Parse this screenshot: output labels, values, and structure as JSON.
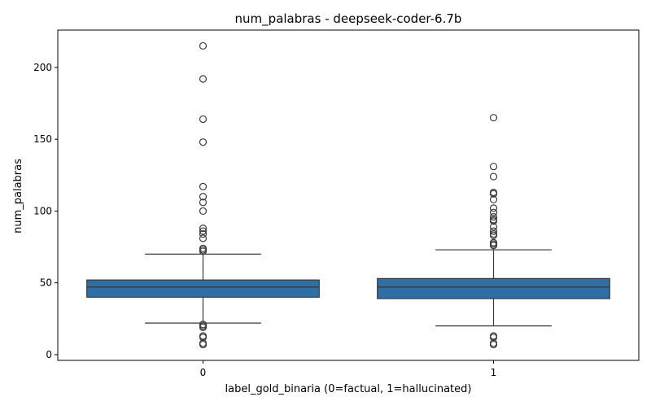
{
  "chart_data": {
    "type": "box",
    "title": "num_palabras - deepseek-coder-6.7b",
    "xlabel": "label_gold_binaria (0=factual, 1=hallucinated)",
    "ylabel": "num_palabras",
    "categories": [
      "0",
      "1"
    ],
    "ylim": [
      -4,
      226
    ],
    "yticks": [
      0,
      50,
      100,
      150,
      200
    ],
    "grid": false,
    "colors": {
      "box": "#2e6fa8",
      "line": "#3a3a3a"
    },
    "boxes": [
      {
        "category": "0",
        "whisker_low": 22,
        "q1": 40,
        "median": 47,
        "q3": 52,
        "whisker_high": 70,
        "outliers": [
          215,
          192,
          164,
          148,
          117,
          110,
          106,
          100,
          88,
          86,
          84,
          81,
          74,
          73,
          72,
          21,
          20,
          19,
          13,
          12,
          8,
          7
        ]
      },
      {
        "category": "1",
        "whisker_low": 20,
        "q1": 39,
        "median": 47,
        "q3": 53,
        "whisker_high": 73,
        "outliers": [
          165,
          131,
          124,
          113,
          112,
          108,
          102,
          99,
          96,
          94,
          93,
          89,
          86,
          84,
          83,
          78,
          77,
          76,
          13,
          12,
          8,
          7
        ]
      }
    ]
  }
}
